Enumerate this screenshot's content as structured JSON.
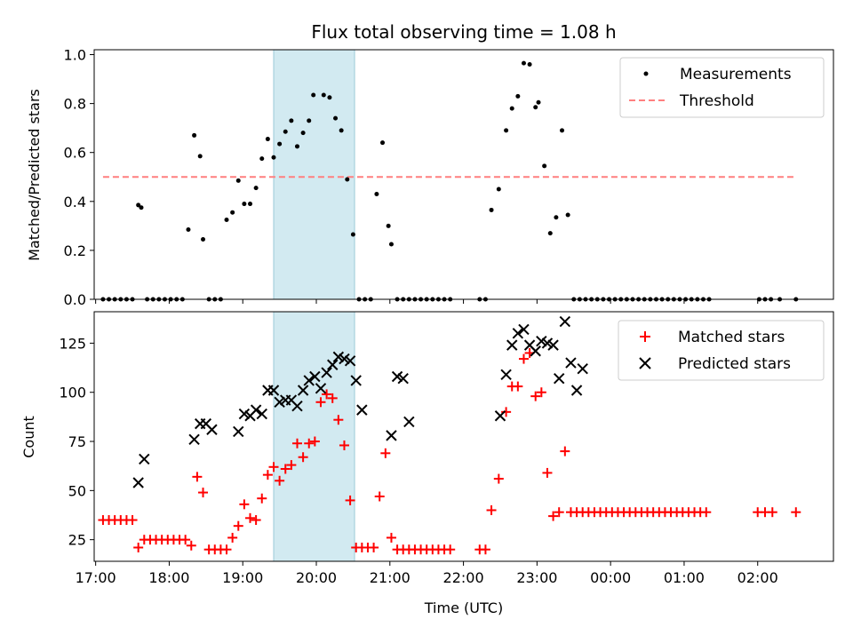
{
  "chart_data": [
    {
      "type": "scatter",
      "title": "Flux total observing time = 1.08 h",
      "ylabel": "Matched/Predicted stars",
      "ylim": [
        0,
        1.02
      ],
      "yticks": [
        0.0,
        0.2,
        0.4,
        0.6,
        0.8,
        1.0
      ],
      "yticklabels": [
        "0.0",
        "0.2",
        "0.4",
        "0.6",
        "0.8",
        "1.0"
      ],
      "xlim": [
        16.98,
        27.03
      ],
      "xticks": [
        17,
        18,
        19,
        20,
        21,
        22,
        23,
        24,
        25,
        26
      ],
      "grid": false,
      "legend_position": "top-right",
      "highlight_span": {
        "x": [
          19.42,
          20.52
        ],
        "color": "#add8e6"
      },
      "threshold": {
        "name": "Threshold",
        "y": 0.5,
        "x": [
          17.1,
          26.52
        ],
        "color": "#ff7f7f",
        "style": "dashed"
      },
      "series": [
        {
          "name": "Measurements",
          "color": "#000000",
          "marker": "dot",
          "x": [
            17.1,
            17.18,
            17.26,
            17.34,
            17.42,
            17.5,
            17.58,
            17.62,
            17.7,
            17.78,
            17.86,
            17.94,
            18.02,
            18.1,
            18.18,
            18.26,
            18.34,
            18.42,
            18.46,
            18.54,
            18.62,
            18.7,
            18.78,
            18.86,
            18.94,
            19.02,
            19.1,
            19.18,
            19.26,
            19.34,
            19.42,
            19.5,
            19.58,
            19.66,
            19.74,
            19.82,
            19.9,
            19.96,
            20.1,
            20.18,
            20.26,
            20.34,
            20.42,
            20.5,
            20.58,
            20.66,
            20.74,
            20.82,
            20.9,
            20.98,
            21.02,
            21.1,
            21.18,
            21.26,
            21.34,
            21.42,
            21.5,
            21.58,
            21.66,
            21.74,
            21.82,
            22.22,
            22.3,
            22.38,
            22.48,
            22.58,
            22.66,
            22.74,
            22.82,
            22.9,
            22.98,
            23.02,
            23.1,
            23.18,
            23.26,
            23.34,
            23.42,
            23.5,
            23.58,
            23.66,
            23.74,
            23.82,
            23.9,
            23.98,
            24.06,
            24.14,
            24.22,
            24.3,
            24.38,
            24.46,
            24.54,
            24.62,
            24.7,
            24.78,
            24.86,
            24.94,
            25.02,
            25.1,
            25.18,
            25.26,
            25.34,
            26.02,
            26.1,
            26.18,
            26.3,
            26.52
          ],
          "y": [
            0,
            0,
            0,
            0,
            0,
            0,
            0.385,
            0.375,
            0,
            0,
            0,
            0,
            0,
            0,
            0,
            0.285,
            0.67,
            0.585,
            0.245,
            0,
            0,
            0,
            0.325,
            0.355,
            0.485,
            0.39,
            0.39,
            0.455,
            0.575,
            0.655,
            0.58,
            0.635,
            0.685,
            0.73,
            0.625,
            0.68,
            0.73,
            0.835,
            0.835,
            0.825,
            0.74,
            0.69,
            0.49,
            0.265,
            0,
            0,
            0,
            0.43,
            0.64,
            0.3,
            0.225,
            0,
            0,
            0,
            0,
            0,
            0,
            0,
            0,
            0,
            0,
            0,
            0,
            0.365,
            0.45,
            0.69,
            0.78,
            0.83,
            0.965,
            0.96,
            0.785,
            0.805,
            0.545,
            0.27,
            0.335,
            0.69,
            0.345,
            0,
            0,
            0,
            0,
            0,
            0,
            0,
            0,
            0,
            0,
            0,
            0,
            0,
            0,
            0,
            0,
            0,
            0,
            0,
            0,
            0,
            0,
            0,
            0,
            0,
            0,
            0,
            0,
            0
          ]
        }
      ]
    },
    {
      "type": "scatter",
      "title": "",
      "xlabel": "Time (UTC)",
      "ylabel": "Count",
      "ylim": [
        14,
        141
      ],
      "yticks": [
        25,
        50,
        75,
        100,
        125
      ],
      "yticklabels": [
        "25",
        "50",
        "75",
        "100",
        "125"
      ],
      "xlim": [
        16.98,
        27.03
      ],
      "xticks": [
        17,
        18,
        19,
        20,
        21,
        22,
        23,
        24,
        25,
        26
      ],
      "xticklabels": [
        "17:00",
        "18:00",
        "19:00",
        "20:00",
        "21:00",
        "22:00",
        "23:00",
        "00:00",
        "01:00",
        "02:00"
      ],
      "grid": false,
      "legend_position": "top-right",
      "highlight_span": {
        "x": [
          19.42,
          20.52
        ],
        "color": "#add8e6"
      },
      "series": [
        {
          "name": "Matched stars",
          "color": "#ff0000",
          "marker": "plus",
          "x": [
            17.1,
            17.18,
            17.26,
            17.34,
            17.42,
            17.5,
            17.58,
            17.66,
            17.74,
            17.82,
            17.9,
            17.98,
            18.06,
            18.14,
            18.22,
            18.3,
            18.38,
            18.46,
            18.54,
            18.62,
            18.7,
            18.78,
            18.86,
            18.94,
            19.02,
            19.1,
            19.18,
            19.26,
            19.34,
            19.42,
            19.5,
            19.58,
            19.66,
            19.74,
            19.82,
            19.9,
            19.98,
            20.06,
            20.14,
            20.22,
            20.3,
            20.38,
            20.46,
            20.54,
            20.62,
            20.7,
            20.78,
            20.86,
            20.94,
            21.02,
            21.1,
            21.18,
            21.26,
            21.34,
            21.42,
            21.5,
            21.58,
            21.66,
            21.74,
            21.82,
            22.22,
            22.3,
            22.38,
            22.48,
            22.58,
            22.66,
            22.74,
            22.82,
            22.9,
            22.98,
            23.06,
            23.14,
            23.22,
            23.3,
            23.38,
            23.46,
            23.54,
            23.62,
            23.7,
            23.78,
            23.86,
            23.94,
            24.02,
            24.1,
            24.18,
            24.26,
            24.34,
            24.42,
            24.5,
            24.58,
            24.66,
            24.74,
            24.82,
            24.9,
            24.98,
            25.06,
            25.14,
            25.22,
            25.3,
            26.0,
            26.1,
            26.2,
            26.52
          ],
          "y": [
            35,
            35,
            35,
            35,
            35,
            35,
            21,
            25,
            25,
            25,
            25,
            25,
            25,
            25,
            25,
            22,
            57,
            49,
            20,
            20,
            20,
            20,
            26,
            32,
            43,
            36,
            35,
            46,
            58,
            62,
            55,
            61,
            63,
            74,
            67,
            74,
            75,
            95,
            99,
            97,
            86,
            73,
            45,
            21,
            21,
            21,
            21,
            47,
            69,
            26,
            20,
            20,
            20,
            20,
            20,
            20,
            20,
            20,
            20,
            20,
            20,
            20,
            40,
            56,
            90,
            103,
            103,
            117,
            120,
            98,
            100,
            59,
            37,
            39,
            70,
            39,
            39,
            39,
            39,
            39,
            39,
            39,
            39,
            39,
            39,
            39,
            39,
            39,
            39,
            39,
            39,
            39,
            39,
            39,
            39,
            39,
            39,
            39,
            39,
            39,
            39,
            39,
            39
          ]
        },
        {
          "name": "Predicted stars",
          "color": "#000000",
          "marker": "x",
          "x": [
            17.58,
            17.66,
            18.34,
            18.42,
            18.5,
            18.58,
            18.94,
            19.02,
            19.1,
            19.18,
            19.26,
            19.34,
            19.42,
            19.5,
            19.58,
            19.66,
            19.74,
            19.82,
            19.9,
            19.98,
            20.06,
            20.14,
            20.22,
            20.3,
            20.38,
            20.46,
            20.54,
            20.62,
            21.02,
            21.1,
            21.18,
            21.26,
            22.5,
            22.58,
            22.66,
            22.74,
            22.82,
            22.9,
            22.98,
            23.06,
            23.14,
            23.22,
            23.3,
            23.38,
            23.46,
            23.54,
            23.62
          ],
          "y": [
            54,
            66,
            76,
            84,
            84,
            81,
            80,
            89,
            88,
            91,
            89,
            101,
            101,
            95,
            96,
            96,
            93,
            101,
            106,
            108,
            102,
            110,
            114,
            118,
            117,
            116,
            106,
            91,
            78,
            108,
            107,
            85,
            88,
            109,
            124,
            130,
            132,
            124,
            121,
            126,
            125,
            124,
            107,
            136,
            115,
            101,
            112
          ]
        }
      ]
    }
  ]
}
